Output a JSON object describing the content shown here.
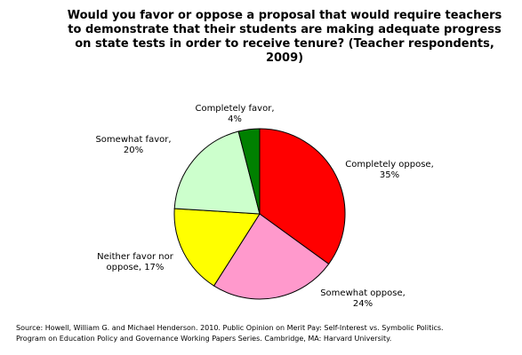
{
  "chart_data": {
    "type": "pie",
    "title_lines": [
      "Would you favor or oppose a proposal that would require teachers",
      "to demonstrate that their students are making adequate progress",
      "on state tests in order to receive tenure? (Teacher respondents,",
      "2009)"
    ],
    "slices": [
      {
        "name": "Completely oppose",
        "value": 35,
        "color": "#ff0000",
        "label_lines": [
          "Completely oppose,",
          "35%"
        ]
      },
      {
        "name": "Somewhat oppose",
        "value": 24,
        "color": "#ff99cc",
        "label_lines": [
          "Somewhat oppose,",
          "24%"
        ]
      },
      {
        "name": "Neither favor nor oppose",
        "value": 17,
        "color": "#ffff00",
        "label_lines": [
          "Neither favor nor",
          "oppose, 17%"
        ]
      },
      {
        "name": "Somewhat favor",
        "value": 20,
        "color": "#ccffcc",
        "label_lines": [
          "Somewhat favor,",
          "20%"
        ]
      },
      {
        "name": "Completely favor",
        "value": 4,
        "color": "#008000",
        "label_lines": [
          "Completely favor,",
          "4%"
        ]
      }
    ],
    "source_lines": [
      "Source: Howell, William G. and Michael Henderson. 2010. Public Opinion on Merit Pay: Self-Interest vs. Symbolic Politics.",
      "Program on Education Policy and Governance Working Papers Series. Cambridge, MA: Harvard University."
    ]
  }
}
